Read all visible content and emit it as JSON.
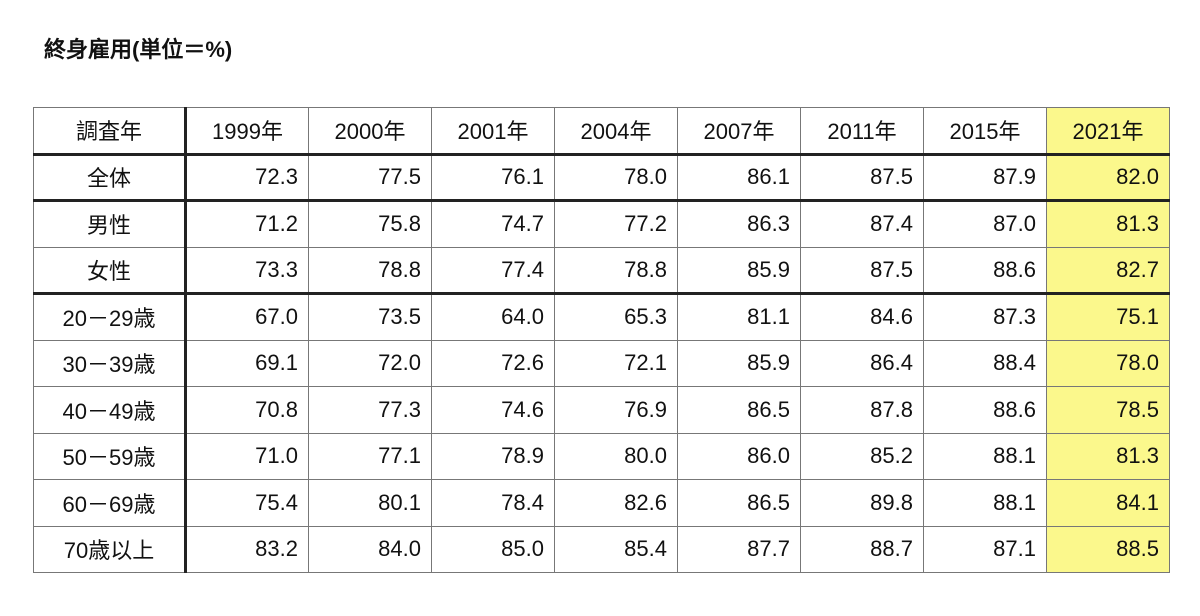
{
  "title": "終身雇用(単位＝%)",
  "table": {
    "header": [
      "調査年",
      "1999年",
      "2000年",
      "2001年",
      "2004年",
      "2007年",
      "2011年",
      "2015年",
      "2021年"
    ],
    "rows": [
      [
        "全体",
        "72.3",
        "77.5",
        "76.1",
        "78.0",
        "86.1",
        "87.5",
        "87.9",
        "82.0"
      ],
      [
        "男性",
        "71.2",
        "75.8",
        "74.7",
        "77.2",
        "86.3",
        "87.4",
        "87.0",
        "81.3"
      ],
      [
        "女性",
        "73.3",
        "78.8",
        "77.4",
        "78.8",
        "85.9",
        "87.5",
        "88.6",
        "82.7"
      ],
      [
        "20－29歳",
        "67.0",
        "73.5",
        "64.0",
        "65.3",
        "81.1",
        "84.6",
        "87.3",
        "75.1"
      ],
      [
        "30－39歳",
        "69.1",
        "72.0",
        "72.6",
        "72.1",
        "85.9",
        "86.4",
        "88.4",
        "78.0"
      ],
      [
        "40－49歳",
        "70.8",
        "77.3",
        "74.6",
        "76.9",
        "86.5",
        "87.8",
        "88.6",
        "78.5"
      ],
      [
        "50－59歳",
        "71.0",
        "77.1",
        "78.9",
        "80.0",
        "86.0",
        "85.2",
        "88.1",
        "81.3"
      ],
      [
        "60－69歳",
        "75.4",
        "80.1",
        "78.4",
        "82.6",
        "86.5",
        "89.8",
        "88.1",
        "84.1"
      ],
      [
        "70歳以上",
        "83.2",
        "84.0",
        "85.0",
        "85.4",
        "87.7",
        "88.7",
        "87.1",
        "88.5"
      ]
    ]
  }
}
